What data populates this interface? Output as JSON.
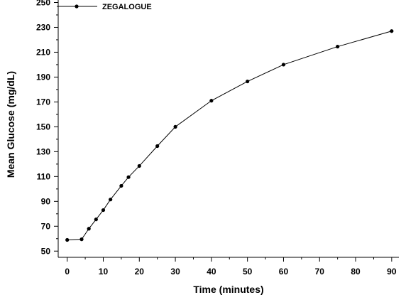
{
  "chart_data": {
    "type": "line",
    "title": "",
    "xlabel": "Time (minutes)",
    "ylabel": "Mean Glucose (mg/dL)",
    "xlim": [
      -2.5,
      92
    ],
    "ylim": [
      45,
      252
    ],
    "x_ticks": [
      0,
      10,
      20,
      30,
      40,
      50,
      60,
      70,
      80,
      90
    ],
    "x_minor_step": 5,
    "y_ticks": [
      50,
      70,
      90,
      110,
      130,
      150,
      170,
      190,
      210,
      230,
      250
    ],
    "y_minor_step": 10,
    "grid": false,
    "legend_position": "top-left",
    "series": [
      {
        "name": "ZEGALOGUE",
        "color": "#000000",
        "marker": "circle",
        "x": [
          0,
          4,
          6,
          8,
          10,
          12,
          15,
          17,
          20,
          25,
          30,
          40,
          50,
          60,
          75,
          90
        ],
        "y": [
          59,
          59.5,
          68,
          75.5,
          83,
          91.5,
          102.5,
          109.5,
          118.5,
          134.5,
          150,
          171,
          186.5,
          200,
          214.5,
          227
        ]
      }
    ]
  }
}
